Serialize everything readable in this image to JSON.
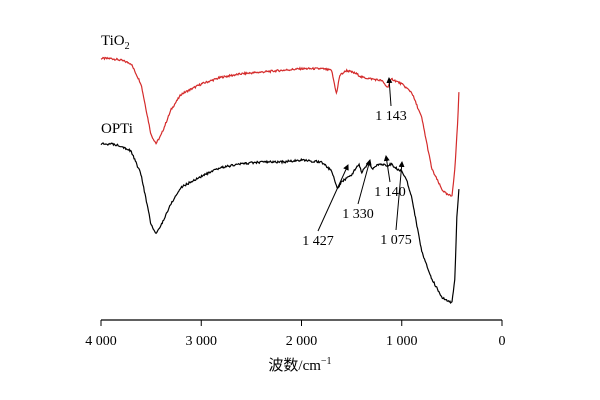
{
  "chart_data": {
    "type": "line",
    "xlabel": "波数/cm",
    "xlabel_superscript": "−1",
    "xlim": [
      4000,
      0
    ],
    "x_axis": "reversed",
    "grid": false,
    "y_axis": "none",
    "x_ticks": [
      {
        "value": 4000,
        "label": "4 000"
      },
      {
        "value": 3000,
        "label": "3 000"
      },
      {
        "value": 2000,
        "label": "2 000"
      },
      {
        "value": 1000,
        "label": "1 000"
      },
      {
        "value": 0,
        "label": "0"
      }
    ],
    "series": [
      {
        "name": "TiO",
        "name_subscript": "2",
        "color": "#d42b2b",
        "x": [
          4000,
          3900,
          3800,
          3700,
          3600,
          3500,
          3450,
          3400,
          3300,
          3200,
          3000,
          2800,
          2600,
          2400,
          2200,
          2000,
          1800,
          1700,
          1650,
          1620,
          1550,
          1500,
          1450,
          1400,
          1300,
          1200,
          1143,
          1100,
          1000,
          900,
          800,
          750,
          700,
          600,
          550,
          500,
          470,
          440,
          430
        ],
        "y": [
          95,
          95,
          94,
          92,
          80,
          50,
          45,
          50,
          65,
          74,
          80,
          84,
          86,
          87,
          88,
          89,
          89,
          88,
          74,
          85,
          88,
          87,
          86,
          84,
          83,
          82,
          78,
          83,
          80,
          75,
          60,
          45,
          30,
          18,
          15,
          14,
          30,
          60,
          75
        ]
      },
      {
        "name": "OPTi",
        "color": "#000000",
        "x": [
          4000,
          3900,
          3800,
          3700,
          3600,
          3500,
          3450,
          3400,
          3300,
          3200,
          3000,
          2800,
          2600,
          2400,
          2200,
          2000,
          1800,
          1700,
          1640,
          1600,
          1550,
          1500,
          1427,
          1400,
          1330,
          1300,
          1250,
          1200,
          1140,
          1100,
          1075,
          1000,
          950,
          900,
          850,
          800,
          700,
          600,
          550,
          500,
          470,
          450,
          430
        ],
        "y": [
          95,
          95,
          94,
          91,
          78,
          50,
          45,
          50,
          62,
          71,
          77,
          82,
          84,
          85,
          85,
          86,
          85,
          80,
          70,
          74,
          76,
          78,
          84,
          79,
          85,
          81,
          83,
          84,
          83,
          84,
          82,
          80,
          75,
          65,
          50,
          35,
          20,
          10,
          8,
          7,
          20,
          55,
          70
        ]
      }
    ],
    "annotations": [
      {
        "text": "1 143",
        "x": 1143,
        "series": "TiO2"
      },
      {
        "text": "1 427",
        "x": 1427,
        "series": "OPTi"
      },
      {
        "text": "1 330",
        "x": 1330,
        "series": "OPTi"
      },
      {
        "text": "1 140",
        "x": 1140,
        "series": "OPTi"
      },
      {
        "text": "1 075",
        "x": 1075,
        "series": "OPTi"
      }
    ]
  }
}
